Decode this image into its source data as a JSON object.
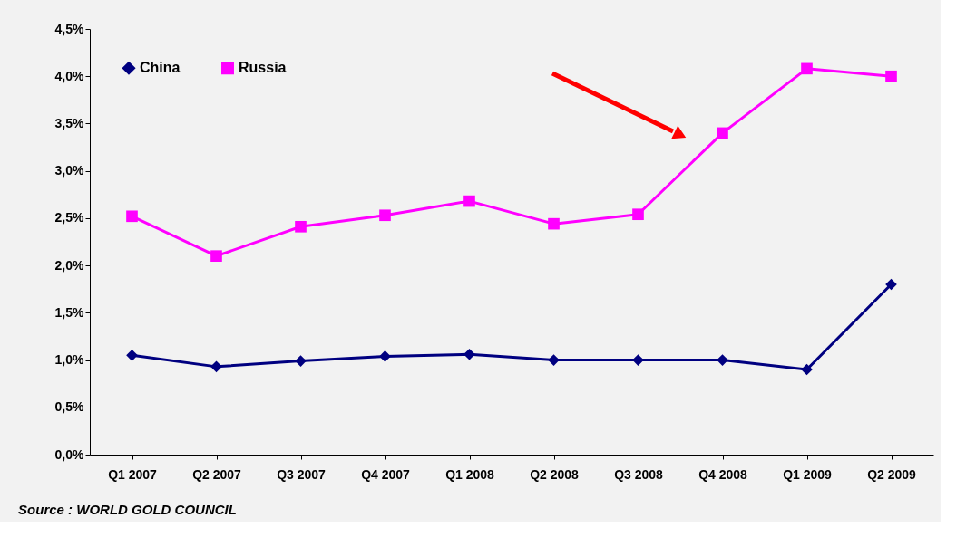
{
  "chart_data": {
    "type": "line",
    "categories": [
      "Q1 2007",
      "Q2 2007",
      "Q3 2007",
      "Q4 2007",
      "Q1 2008",
      "Q2 2008",
      "Q3 2008",
      "Q4 2008",
      "Q1 2009",
      "Q2 2009"
    ],
    "series": [
      {
        "name": "China",
        "color": "#000080",
        "marker": "diamond",
        "values": [
          1.05,
          0.93,
          0.99,
          1.04,
          1.06,
          1.0,
          1.0,
          1.0,
          0.9,
          1.8
        ]
      },
      {
        "name": "Russia",
        "color": "#ff00ff",
        "marker": "square",
        "values": [
          2.52,
          2.1,
          2.41,
          2.53,
          2.68,
          2.44,
          2.54,
          3.4,
          4.08,
          4.0
        ]
      }
    ],
    "ylim": [
      0,
      4.5
    ],
    "yticks": [
      {
        "value": 0,
        "label": "0,0%"
      },
      {
        "value": 0.5,
        "label": "0,5%"
      },
      {
        "value": 1,
        "label": "1,0%"
      },
      {
        "value": 1.5,
        "label": "1,5%"
      },
      {
        "value": 2,
        "label": "2,0%"
      },
      {
        "value": 2.5,
        "label": "2,5%"
      },
      {
        "value": 3,
        "label": "3,0%"
      },
      {
        "value": 3.5,
        "label": "3,5%"
      },
      {
        "value": 4,
        "label": "4,0%"
      },
      {
        "value": 4.5,
        "label": "4,5%"
      }
    ],
    "grid": false,
    "legend": "top left",
    "line_style": "solid",
    "annotations": [
      "Source : WORLD GOLD COUNCIL"
    ]
  }
}
